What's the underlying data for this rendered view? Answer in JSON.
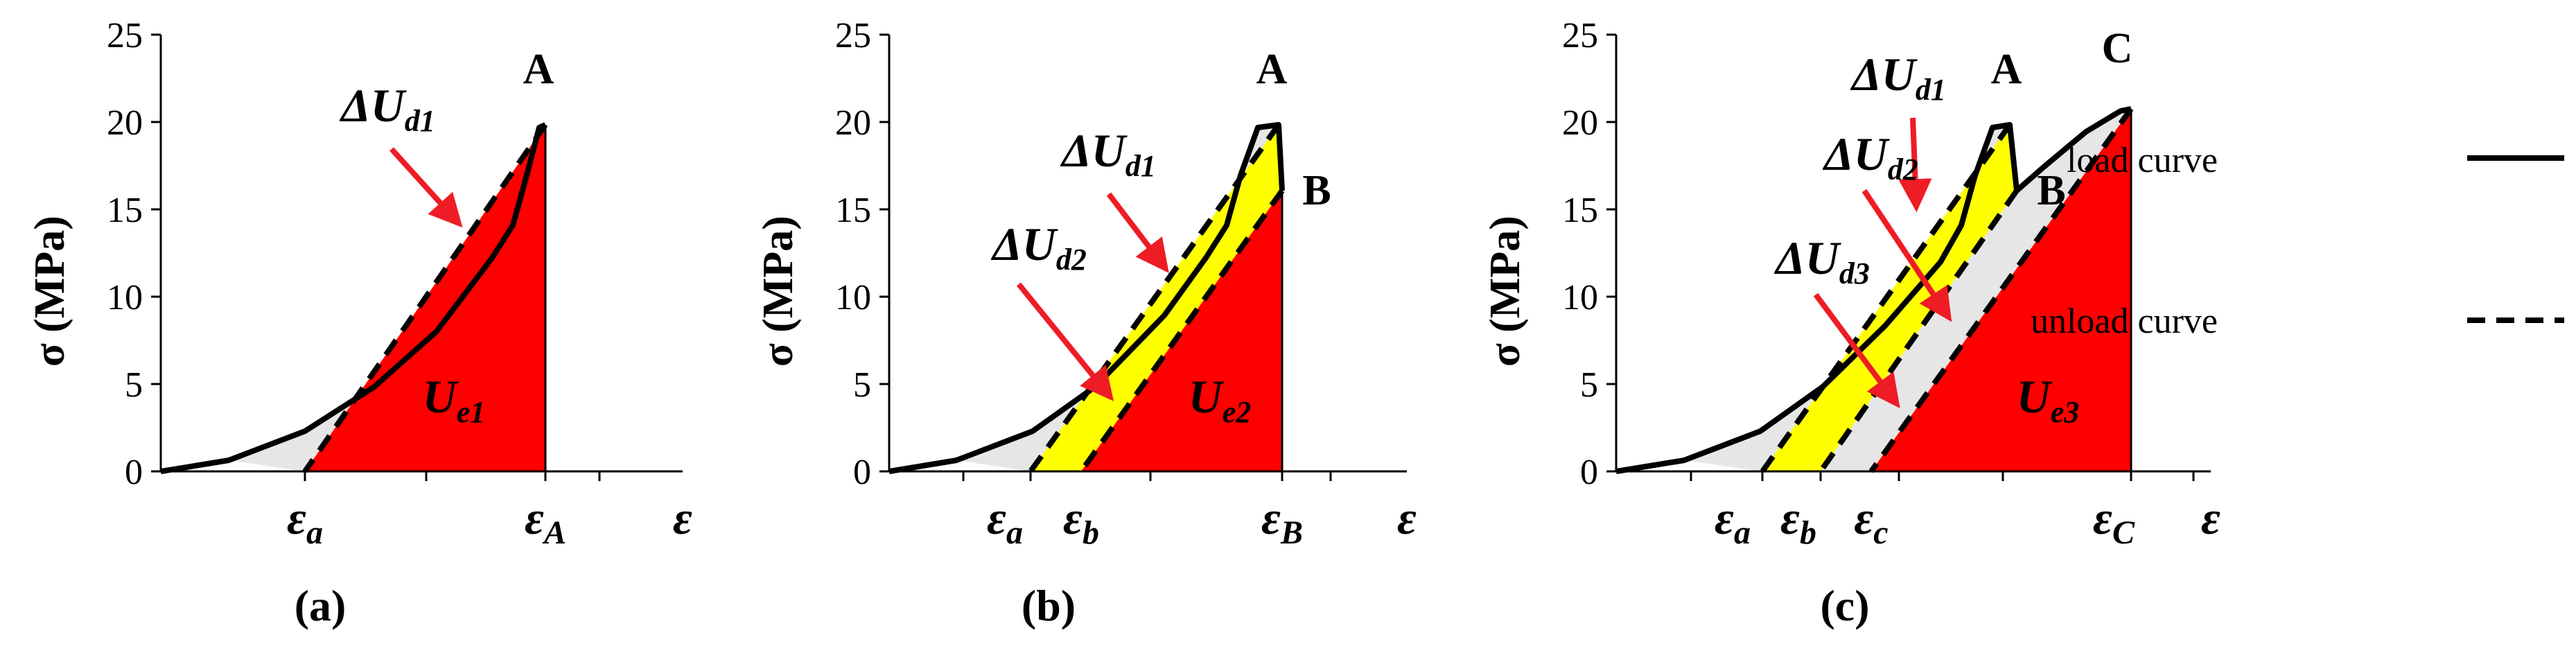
{
  "chart_data": [
    {
      "type": "line",
      "panel_label": "(a)",
      "y_axis_label": "σ (MPa)",
      "ylim": [
        0,
        25
      ],
      "yticks": [
        "0",
        "5",
        "10",
        "15",
        "20",
        "25"
      ],
      "x_axis_symbol": "ε",
      "x_tick_labels": [
        {
          "base": "ε",
          "sub": "a"
        },
        {
          "base": "ε",
          "sub": "A"
        }
      ],
      "points": [
        {
          "label": "A",
          "y": 20
        }
      ],
      "load_curve": {
        "name": "load curve",
        "shape": "monotonic loading from 0 to peak A",
        "peak_y": 20
      },
      "unload_curves": [
        {
          "from": "A",
          "to": "εa",
          "y_start": 20
        }
      ],
      "regions": [
        {
          "label": {
            "prefix": "ΔU",
            "sub": "d1"
          },
          "meaning": "dissipated energy",
          "color": "#e6e6e6"
        },
        {
          "label": {
            "prefix": "U",
            "sub": "e1"
          },
          "meaning": "elastic energy",
          "color": "#ff0000"
        }
      ]
    },
    {
      "type": "line",
      "panel_label": "(b)",
      "y_axis_label": "σ (MPa)",
      "ylim": [
        0,
        25
      ],
      "yticks": [
        "0",
        "5",
        "10",
        "15",
        "20",
        "25"
      ],
      "x_axis_symbol": "ε",
      "x_tick_labels": [
        {
          "base": "ε",
          "sub": "a"
        },
        {
          "base": "ε",
          "sub": "b"
        },
        {
          "base": "ε",
          "sub": "B"
        }
      ],
      "points": [
        {
          "label": "A",
          "y": 20
        },
        {
          "label": "B",
          "y": 16
        }
      ],
      "load_curve": {
        "name": "load curve",
        "shape": "loading to A, then drop to B",
        "peak_y": 20,
        "end_y": 16
      },
      "unload_curves": [
        {
          "from": "A",
          "to": "εa",
          "y_start": 20
        },
        {
          "from": "B",
          "to": "εb",
          "y_start": 16
        }
      ],
      "regions": [
        {
          "label": {
            "prefix": "ΔU",
            "sub": "d1"
          },
          "meaning": "dissipated energy",
          "color": "#e6e6e6"
        },
        {
          "label": {
            "prefix": "ΔU",
            "sub": "d2"
          },
          "meaning": "dissipated energy",
          "color": "#ffff00"
        },
        {
          "label": {
            "prefix": "U",
            "sub": "e2"
          },
          "meaning": "elastic energy",
          "color": "#ff0000"
        }
      ]
    },
    {
      "type": "line",
      "panel_label": "(c)",
      "y_axis_label": "σ (MPa)",
      "ylim": [
        0,
        25
      ],
      "yticks": [
        "0",
        "5",
        "10",
        "15",
        "20",
        "25"
      ],
      "x_axis_symbol": "ε",
      "x_tick_labels": [
        {
          "base": "ε",
          "sub": "a"
        },
        {
          "base": "ε",
          "sub": "b"
        },
        {
          "base": "ε",
          "sub": "c"
        },
        {
          "base": "ε",
          "sub": "C"
        }
      ],
      "points": [
        {
          "label": "A",
          "y": 20
        },
        {
          "label": "B",
          "y": 16
        },
        {
          "label": "C",
          "y": 21
        }
      ],
      "load_curve": {
        "name": "load curve",
        "shape": "loading to A, drop to B, reloading to C",
        "peak_y": 21
      },
      "unload_curves": [
        {
          "from": "A",
          "to": "εa",
          "y_start": 20
        },
        {
          "from": "B",
          "to": "εb",
          "y_start": 16
        },
        {
          "from": "C",
          "to": "εc",
          "y_start": 21
        }
      ],
      "regions": [
        {
          "label": {
            "prefix": "ΔU",
            "sub": "d1"
          },
          "meaning": "dissipated energy",
          "color": "#e6e6e6"
        },
        {
          "label": {
            "prefix": "ΔU",
            "sub": "d2"
          },
          "meaning": "dissipated energy",
          "color": "#ffff00"
        },
        {
          "label": {
            "prefix": "ΔU",
            "sub": "d3"
          },
          "meaning": "dissipated energy",
          "color": "#e6e6e6"
        },
        {
          "label": {
            "prefix": "U",
            "sub": "e3"
          },
          "meaning": "elastic energy",
          "color": "#ff0000"
        }
      ]
    }
  ],
  "legend": {
    "placement": "right",
    "entries": [
      {
        "label": "load curve",
        "style": "solid"
      },
      {
        "label": "unload curve",
        "style": "dashed"
      }
    ]
  },
  "colors": {
    "curve": "#000000",
    "arrow": "#ee1c25",
    "elastic": "#ff0000",
    "dissipated_gray": "#e6e6e6",
    "dissipated_yellow": "#ffff00"
  }
}
